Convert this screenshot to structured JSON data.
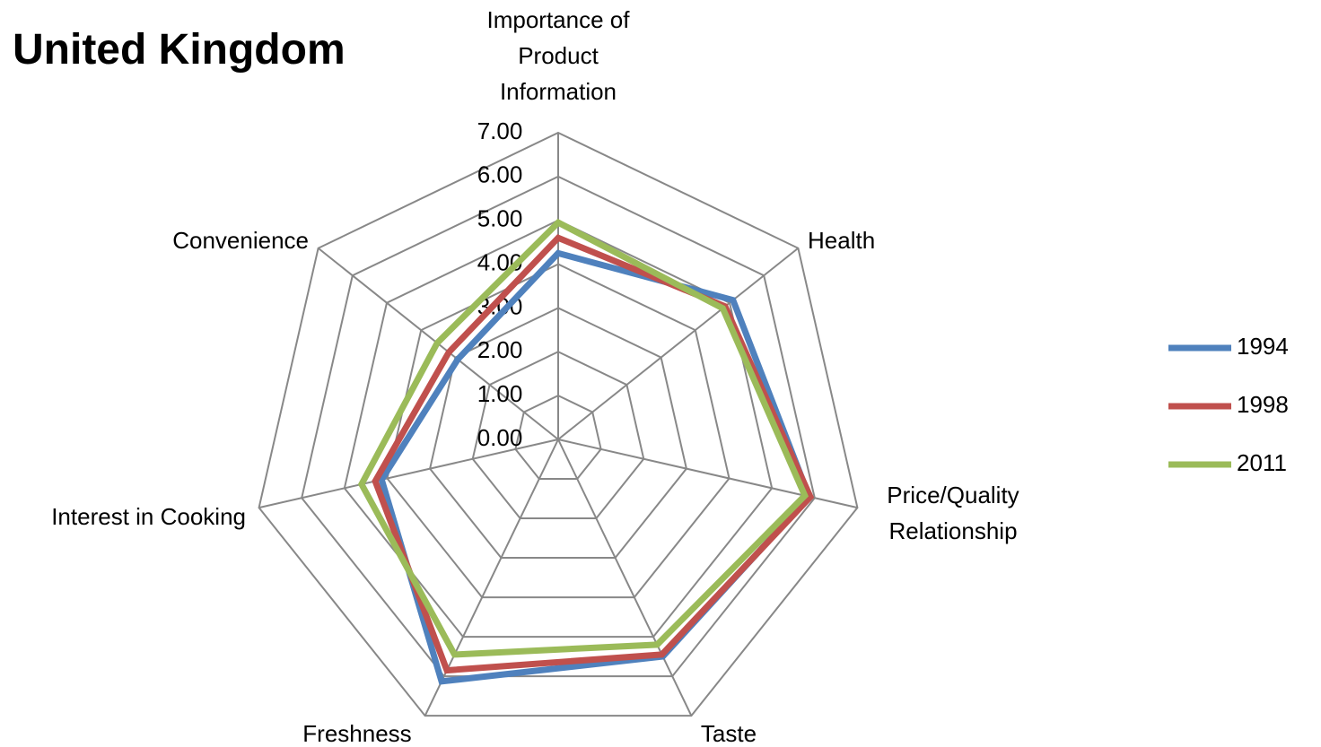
{
  "chart_data": {
    "type": "radar",
    "title": "United Kingdom",
    "categories": [
      "Importance of Product Information",
      "Health",
      "Price/Quality Relationship",
      "Taste",
      "Freshness",
      "Interest in Cooking",
      "Convenience"
    ],
    "series": [
      {
        "name": "1994",
        "color": "#4f81bd",
        "values": [
          4.25,
          5.1,
          5.87,
          5.5,
          6.13,
          4.13,
          2.93
        ]
      },
      {
        "name": "1998",
        "color": "#c0504d",
        "values": [
          4.6,
          4.87,
          5.9,
          5.45,
          5.85,
          4.28,
          3.19
        ]
      },
      {
        "name": "2011",
        "color": "#9bbb59",
        "values": [
          4.95,
          4.8,
          5.77,
          5.2,
          5.45,
          4.6,
          3.53
        ]
      }
    ],
    "ylim": [
      0,
      7
    ],
    "yticks": [
      {
        "value": 0,
        "label": "0.00"
      },
      {
        "value": 1,
        "label": "1.00"
      },
      {
        "value": 2,
        "label": "2.00"
      },
      {
        "value": 3,
        "label": "3.00"
      },
      {
        "value": 4,
        "label": "4.00"
      },
      {
        "value": 5,
        "label": "5.00"
      },
      {
        "value": 6,
        "label": "6.00"
      },
      {
        "value": 7,
        "label": "7.00"
      }
    ],
    "grid": true,
    "legend": "right"
  }
}
